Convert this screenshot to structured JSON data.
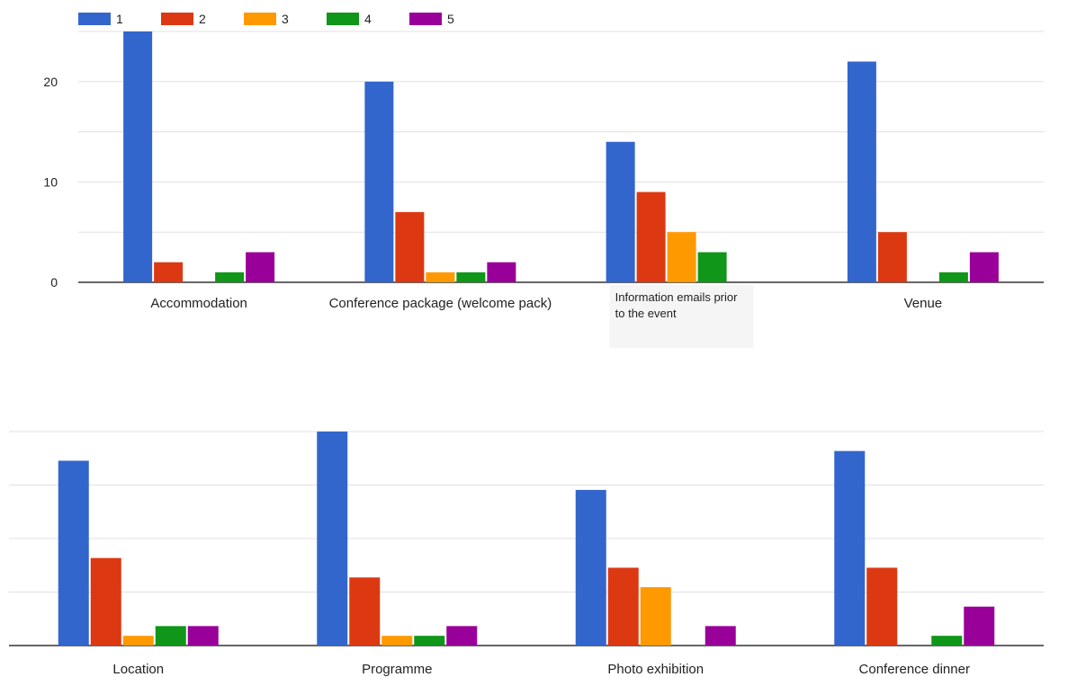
{
  "chart_data": [
    {
      "type": "bar",
      "categories": [
        "Accommodation",
        "Conference package (welcome pack)",
        "Information emails prior to the event",
        "Venue"
      ],
      "series": [
        {
          "name": "1",
          "values": [
            25,
            20,
            14,
            22
          ]
        },
        {
          "name": "2",
          "values": [
            2,
            7,
            9,
            5
          ]
        },
        {
          "name": "3",
          "values": [
            0,
            1,
            5,
            0
          ]
        },
        {
          "name": "4",
          "values": [
            1,
            1,
            3,
            1
          ]
        },
        {
          "name": "5",
          "values": [
            3,
            2,
            0,
            3
          ]
        }
      ],
      "y_ticks": [
        "0",
        "10",
        "20"
      ],
      "ylim": [
        0,
        25
      ],
      "grid": true,
      "legend": "top-left"
    },
    {
      "type": "bar",
      "categories": [
        "Location",
        "Programme",
        "Photo exhibition",
        "Conference dinner"
      ],
      "series": [
        {
          "name": "1",
          "values": [
            19,
            22,
            16,
            20
          ]
        },
        {
          "name": "2",
          "values": [
            9,
            7,
            8,
            8
          ]
        },
        {
          "name": "3",
          "values": [
            1,
            1,
            6,
            0
          ]
        },
        {
          "name": "4",
          "values": [
            2,
            1,
            0,
            1
          ]
        },
        {
          "name": "5",
          "values": [
            2,
            2,
            2,
            4
          ]
        }
      ],
      "ylim": [
        0,
        22
      ],
      "grid": true
    }
  ],
  "colors": [
    "#3366cc",
    "#dc3912",
    "#ff9900",
    "#109618",
    "#990099"
  ]
}
